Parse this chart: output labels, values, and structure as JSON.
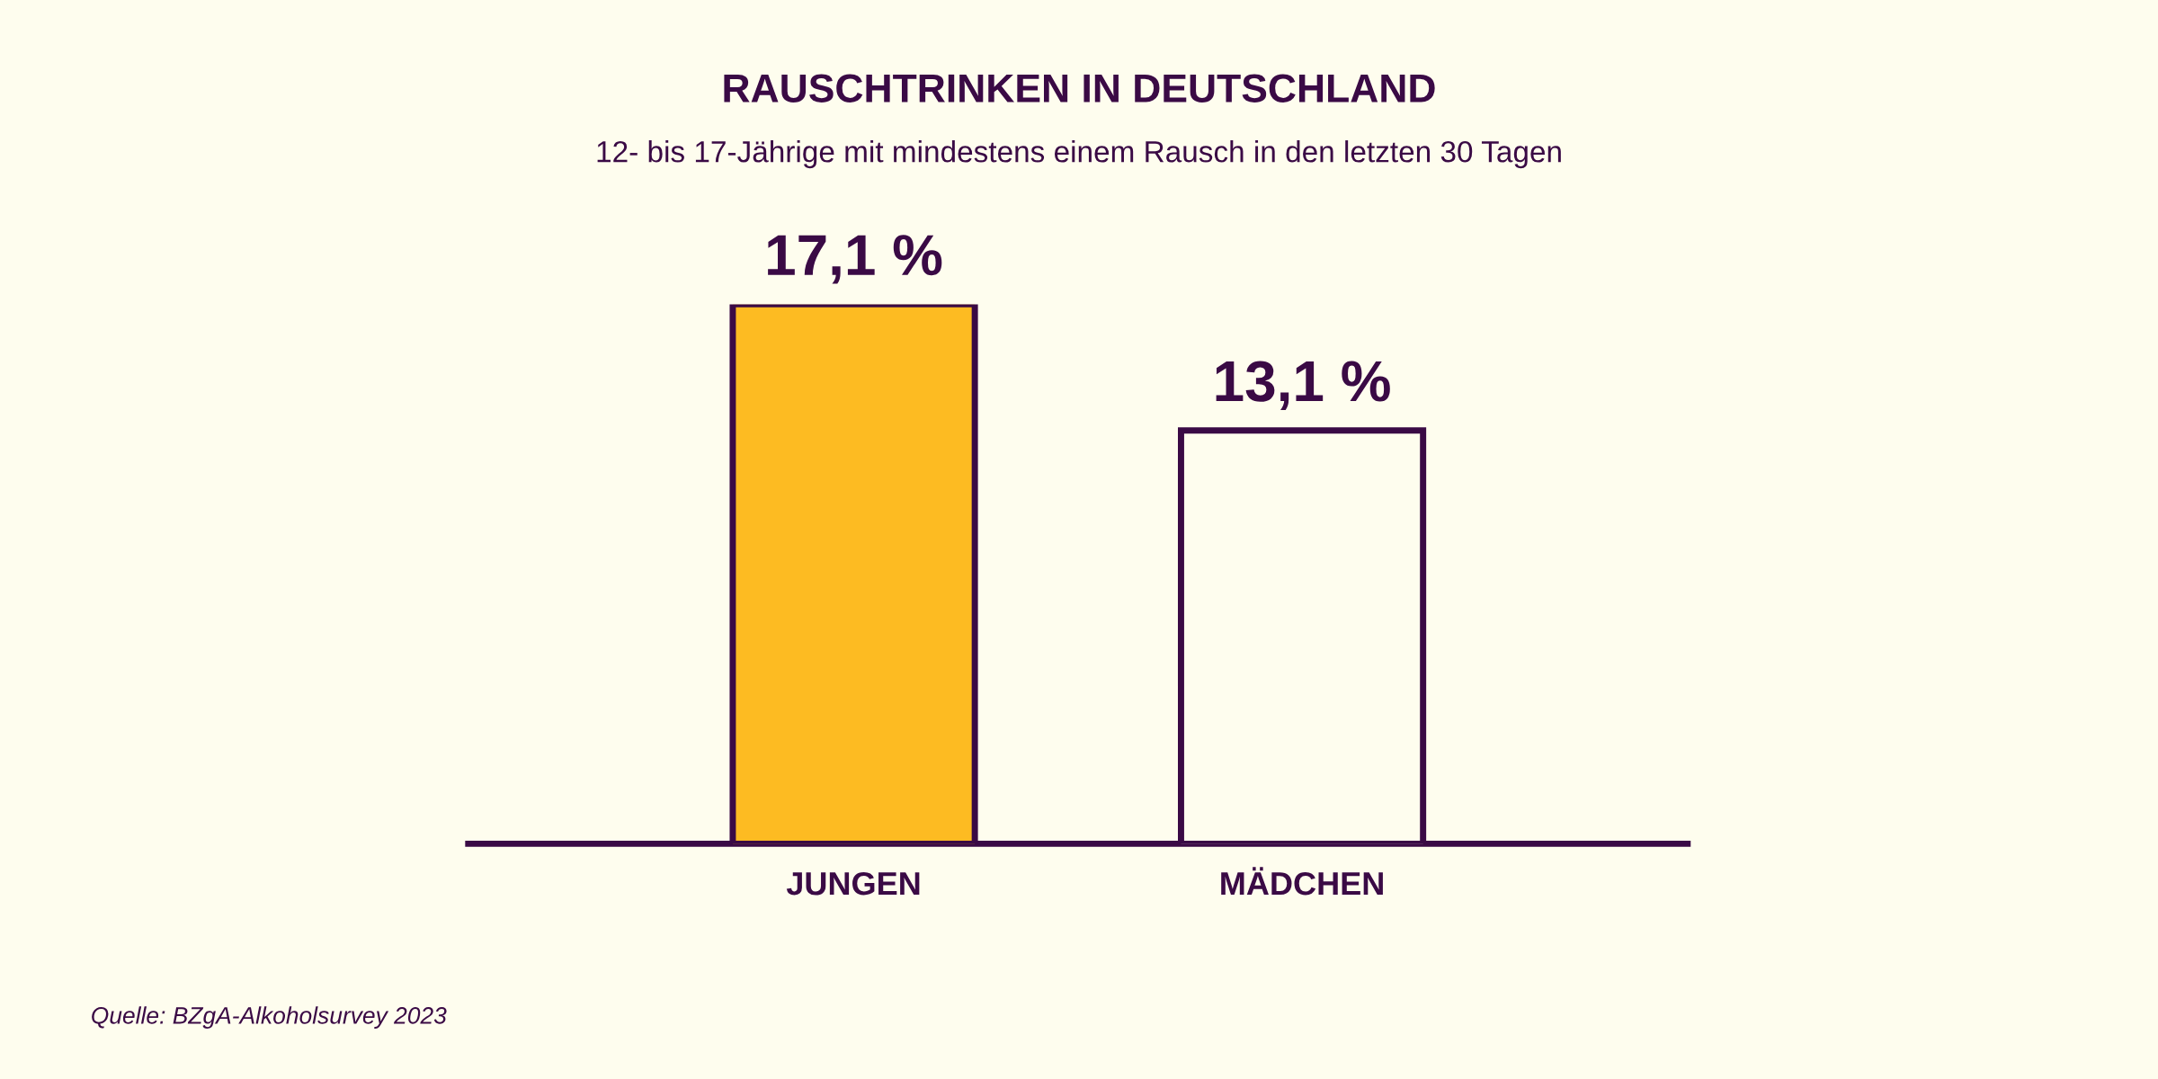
{
  "chart_data": {
    "type": "bar",
    "title": "RAUSCHTRINKEN IN DEUTSCHLAND",
    "subtitle": "12- bis 17-Jährige mit mindestens einem Rausch in den letzten 30 Tagen",
    "categories": [
      "JUNGEN",
      "MÄDCHEN"
    ],
    "values": [
      17.1,
      13.1
    ],
    "colors": [
      "#fdbb22",
      "#fefdee"
    ],
    "value_labels": [
      "17,1 %",
      "13,1 %"
    ],
    "grid": false,
    "legend": false,
    "annotations": [
      "Quelle: BZgA-Alkoholsurvey 2023"
    ]
  }
}
